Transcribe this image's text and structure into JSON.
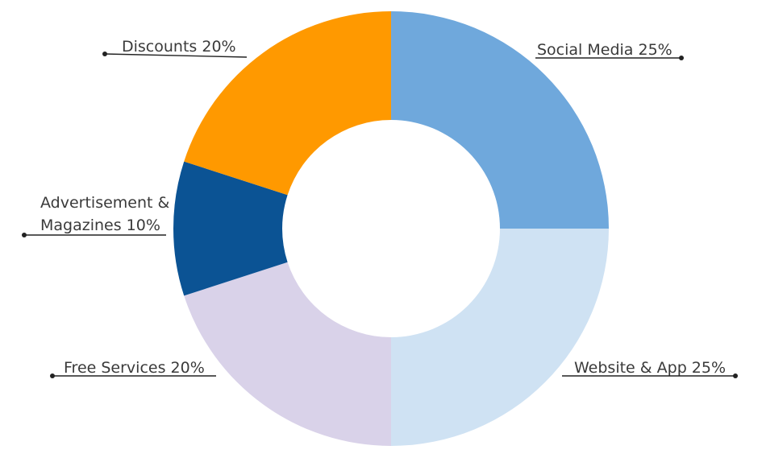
{
  "chart_data": {
    "type": "pie",
    "variant": "donut",
    "title": "",
    "legend": "none",
    "start_angle_deg": 0,
    "direction": "clockwise",
    "slices": [
      {
        "label_lines": [
          "Social Media 25%"
        ],
        "value": 25,
        "color": "#6fa8dc"
      },
      {
        "label_lines": [
          "Website & App 25%"
        ],
        "value": 25,
        "color": "#cfe2f3"
      },
      {
        "label_lines": [
          "Free Services 20%"
        ],
        "value": 20,
        "color": "#d9d2e9"
      },
      {
        "label_lines": [
          "Advertisement &",
          "Magazines 10%"
        ],
        "value": 10,
        "color": "#0b5394"
      },
      {
        "label_lines": [
          "Discounts 20%"
        ],
        "value": 20,
        "color": "#ff9900"
      }
    ]
  }
}
